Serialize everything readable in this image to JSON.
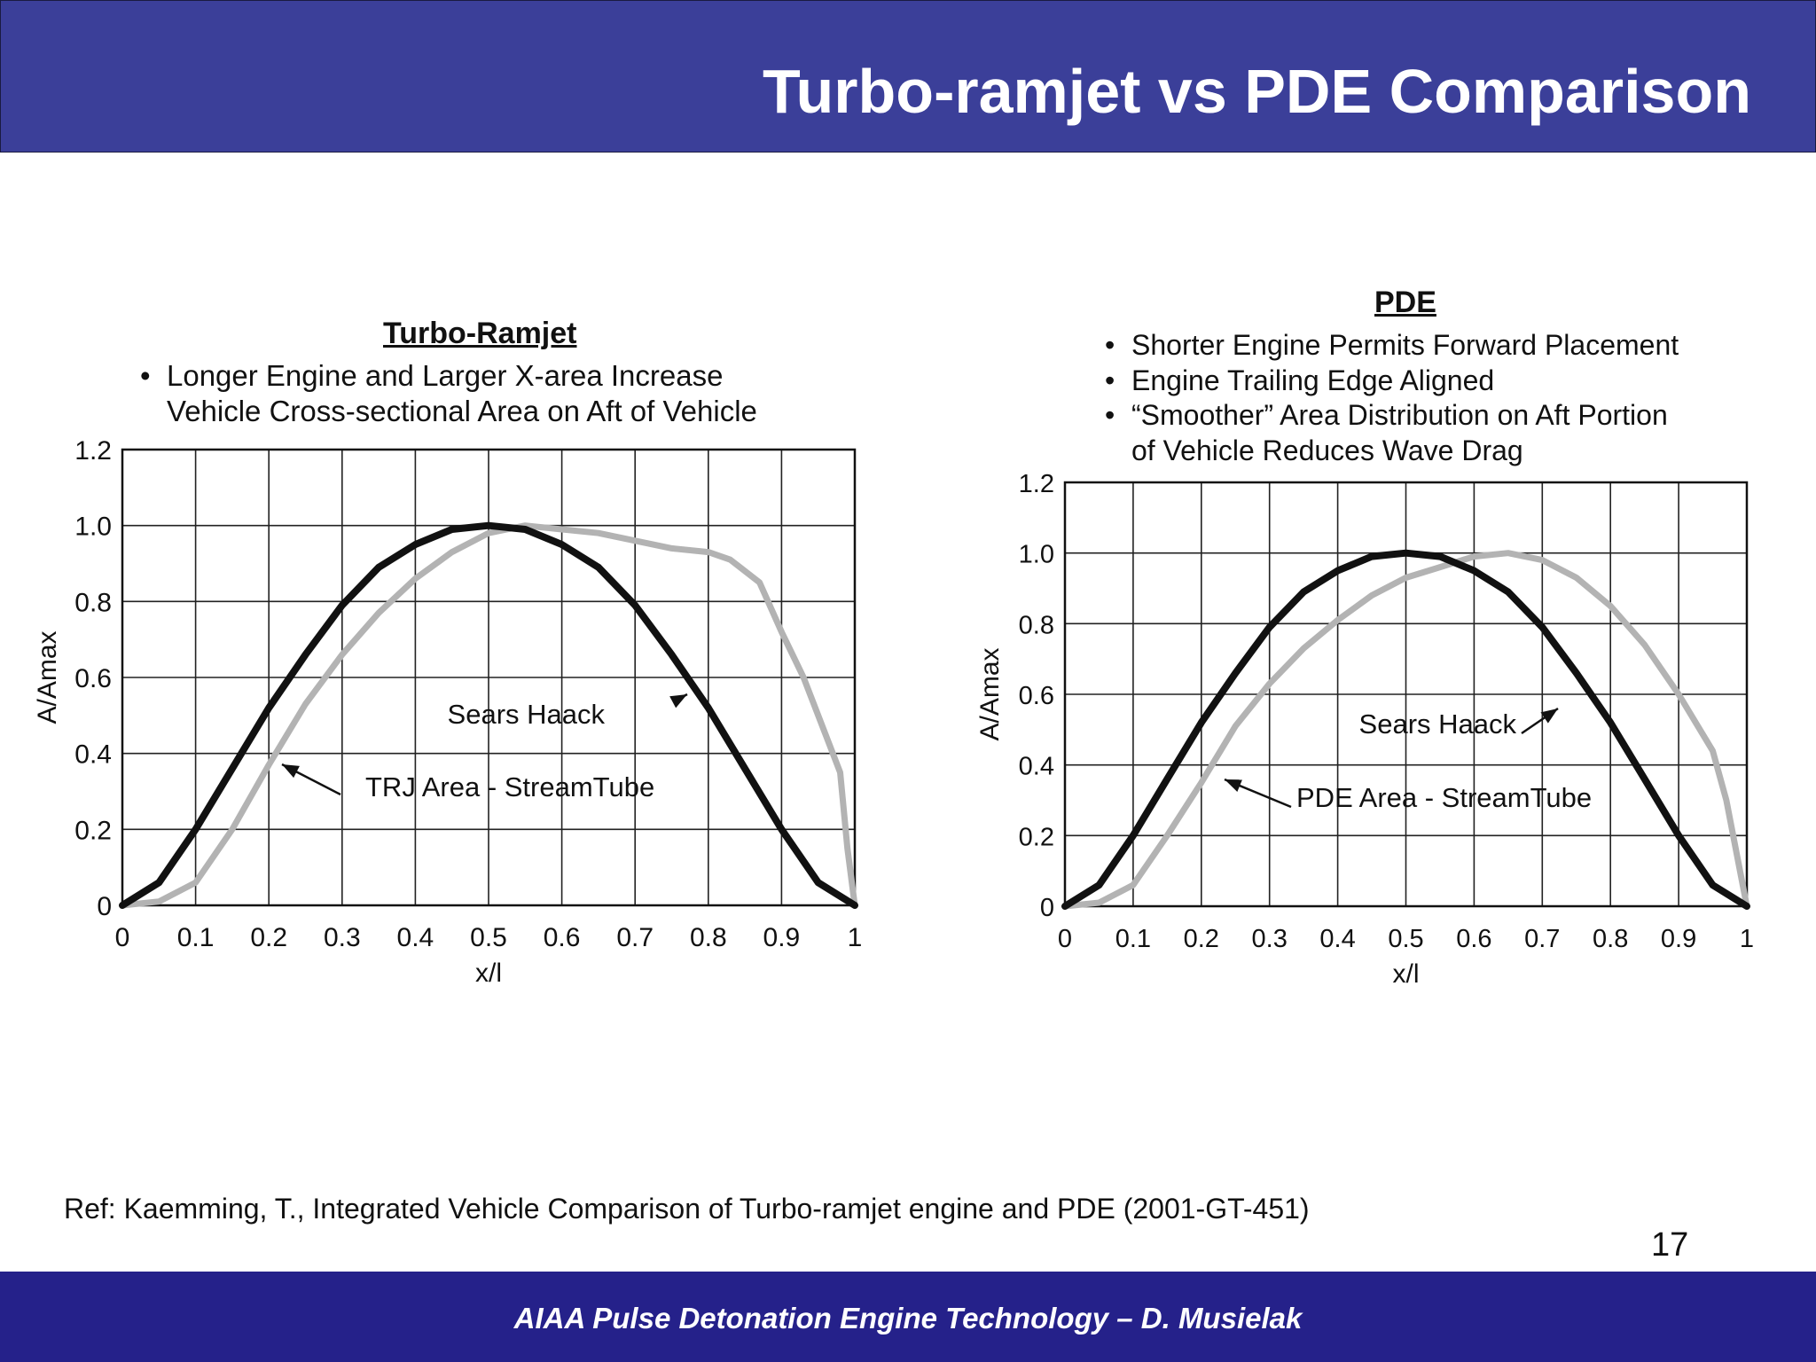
{
  "header": {
    "title": "Turbo-ramjet vs PDE Comparison"
  },
  "footer": {
    "text": "AIAA Pulse Detonation Engine Technology – D. Musielak"
  },
  "reference": "Ref: Kaemming, T., Integrated Vehicle Comparison of Turbo-ramjet engine and PDE (2001-GT-451)",
  "page_number": "17",
  "colors": {
    "header_bg": "#3b3f99",
    "footer_bg": "#25218a",
    "sears_haack": "#111111",
    "streamtube": "#b3b3b3"
  },
  "panels": [
    {
      "title": "Turbo-Ramjet",
      "bullets": [
        "Longer Engine and Larger X-area Increase",
        "Vehicle Cross-sectional Area on Aft of Vehicle"
      ]
    },
    {
      "title": "PDE",
      "bullets": [
        "Shorter Engine Permits Forward Placement",
        "Engine Trailing Edge Aligned",
        "“Smoother” Area Distribution on Aft Portion",
        "of Vehicle Reduces Wave Drag"
      ]
    }
  ],
  "chart_data": [
    {
      "type": "line",
      "title": "Turbo-Ramjet",
      "xlabel": "x/l",
      "ylabel": "A/Amax",
      "xlim": [
        0,
        1
      ],
      "ylim": [
        0,
        1.2
      ],
      "x_ticks": [
        "0",
        "0.1",
        "0.2",
        "0.3",
        "0.4",
        "0.5",
        "0.6",
        "0.7",
        "0.8",
        "0.9",
        "1"
      ],
      "y_ticks": [
        "0",
        "0.2",
        "0.4",
        "0.6",
        "0.8",
        "1.0",
        "1.2"
      ],
      "grid": true,
      "series": [
        {
          "name": "Sears Haack",
          "color": "#111111",
          "points": [
            [
              0,
              0
            ],
            [
              0.05,
              0.06
            ],
            [
              0.1,
              0.2
            ],
            [
              0.15,
              0.36
            ],
            [
              0.2,
              0.52
            ],
            [
              0.25,
              0.66
            ],
            [
              0.3,
              0.79
            ],
            [
              0.35,
              0.89
            ],
            [
              0.4,
              0.95
            ],
            [
              0.45,
              0.99
            ],
            [
              0.5,
              1.0
            ],
            [
              0.55,
              0.99
            ],
            [
              0.6,
              0.95
            ],
            [
              0.65,
              0.89
            ],
            [
              0.7,
              0.79
            ],
            [
              0.75,
              0.66
            ],
            [
              0.8,
              0.52
            ],
            [
              0.85,
              0.36
            ],
            [
              0.9,
              0.2
            ],
            [
              0.95,
              0.06
            ],
            [
              1,
              0
            ]
          ]
        },
        {
          "name": "TRJ Area - StreamTube",
          "color": "#b3b3b3",
          "points": [
            [
              0,
              0
            ],
            [
              0.05,
              0.01
            ],
            [
              0.1,
              0.06
            ],
            [
              0.15,
              0.2
            ],
            [
              0.2,
              0.37
            ],
            [
              0.25,
              0.53
            ],
            [
              0.3,
              0.66
            ],
            [
              0.35,
              0.77
            ],
            [
              0.4,
              0.86
            ],
            [
              0.45,
              0.93
            ],
            [
              0.5,
              0.98
            ],
            [
              0.55,
              1.0
            ],
            [
              0.6,
              0.99
            ],
            [
              0.65,
              0.98
            ],
            [
              0.7,
              0.96
            ],
            [
              0.75,
              0.94
            ],
            [
              0.8,
              0.93
            ],
            [
              0.83,
              0.91
            ],
            [
              0.87,
              0.85
            ],
            [
              0.9,
              0.72
            ],
            [
              0.93,
              0.6
            ],
            [
              0.96,
              0.45
            ],
            [
              0.98,
              0.35
            ],
            [
              0.99,
              0.15
            ],
            [
              1,
              0
            ]
          ]
        }
      ],
      "annotations": [
        "Sears Haack",
        "TRJ Area - StreamTube"
      ]
    },
    {
      "type": "line",
      "title": "PDE",
      "xlabel": "x/l",
      "ylabel": "A/Amax",
      "xlim": [
        0,
        1
      ],
      "ylim": [
        0,
        1.2
      ],
      "x_ticks": [
        "0",
        "0.1",
        "0.2",
        "0.3",
        "0.4",
        "0.5",
        "0.6",
        "0.7",
        "0.8",
        "0.9",
        "1"
      ],
      "y_ticks": [
        "0",
        "0.2",
        "0.4",
        "0.6",
        "0.8",
        "1.0",
        "1.2"
      ],
      "grid": true,
      "series": [
        {
          "name": "Sears Haack",
          "color": "#111111",
          "points": [
            [
              0,
              0
            ],
            [
              0.05,
              0.06
            ],
            [
              0.1,
              0.2
            ],
            [
              0.15,
              0.36
            ],
            [
              0.2,
              0.52
            ],
            [
              0.25,
              0.66
            ],
            [
              0.3,
              0.79
            ],
            [
              0.35,
              0.89
            ],
            [
              0.4,
              0.95
            ],
            [
              0.45,
              0.99
            ],
            [
              0.5,
              1.0
            ],
            [
              0.55,
              0.99
            ],
            [
              0.6,
              0.95
            ],
            [
              0.65,
              0.89
            ],
            [
              0.7,
              0.79
            ],
            [
              0.75,
              0.66
            ],
            [
              0.8,
              0.52
            ],
            [
              0.85,
              0.36
            ],
            [
              0.9,
              0.2
            ],
            [
              0.95,
              0.06
            ],
            [
              1,
              0
            ]
          ]
        },
        {
          "name": "PDE Area - StreamTube",
          "color": "#b3b3b3",
          "points": [
            [
              0,
              0
            ],
            [
              0.05,
              0.01
            ],
            [
              0.1,
              0.06
            ],
            [
              0.15,
              0.2
            ],
            [
              0.2,
              0.35
            ],
            [
              0.25,
              0.51
            ],
            [
              0.3,
              0.63
            ],
            [
              0.35,
              0.73
            ],
            [
              0.4,
              0.81
            ],
            [
              0.45,
              0.88
            ],
            [
              0.5,
              0.93
            ],
            [
              0.55,
              0.96
            ],
            [
              0.6,
              0.99
            ],
            [
              0.65,
              1.0
            ],
            [
              0.7,
              0.98
            ],
            [
              0.75,
              0.93
            ],
            [
              0.8,
              0.85
            ],
            [
              0.85,
              0.74
            ],
            [
              0.9,
              0.6
            ],
            [
              0.95,
              0.44
            ],
            [
              0.97,
              0.3
            ],
            [
              0.99,
              0.1
            ],
            [
              1,
              0
            ]
          ]
        }
      ],
      "annotations": [
        "Sears Haack",
        "PDE Area - StreamTube"
      ]
    }
  ]
}
